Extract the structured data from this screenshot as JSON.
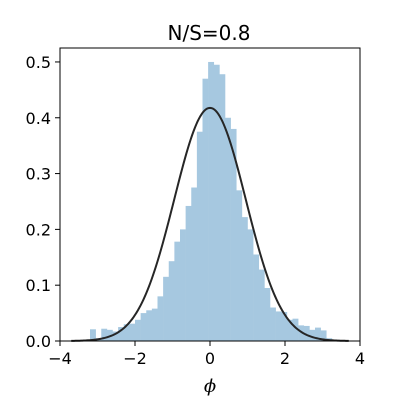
{
  "chart_data": {
    "type": "bar",
    "title": "N/S=0.8",
    "xlabel": "ϕ",
    "ylabel": "",
    "xlim": [
      -4,
      4
    ],
    "ylim": [
      0,
      0.525
    ],
    "xticks": [
      -4,
      -2,
      0,
      2,
      4
    ],
    "xtick_labels": [
      "−4",
      "−2",
      "0",
      "2",
      "4"
    ],
    "yticks": [
      0.0,
      0.1,
      0.2,
      0.3,
      0.4,
      0.5
    ],
    "ytick_labels": [
      "0.0",
      "0.1",
      "0.2",
      "0.3",
      "0.4",
      "0.5"
    ],
    "grid": false,
    "legend": "none",
    "colors": {
      "histogram": "#a6c8e0",
      "curve": "#262626"
    },
    "histogram": {
      "bin_width": 0.15,
      "bins": [
        {
          "x0": -3.2,
          "x1": -3.05,
          "density": 0.021
        },
        {
          "x0": -3.05,
          "x1": -2.9,
          "density": 0.005
        },
        {
          "x0": -2.9,
          "x1": -2.75,
          "density": 0.022
        },
        {
          "x0": -2.75,
          "x1": -2.6,
          "density": 0.02
        },
        {
          "x0": -2.6,
          "x1": -2.45,
          "density": 0.017
        },
        {
          "x0": -2.45,
          "x1": -2.3,
          "density": 0.025
        },
        {
          "x0": -2.3,
          "x1": -2.15,
          "density": 0.03
        },
        {
          "x0": -2.15,
          "x1": -2.0,
          "density": 0.031
        },
        {
          "x0": -2.0,
          "x1": -1.85,
          "density": 0.038
        },
        {
          "x0": -1.85,
          "x1": -1.7,
          "density": 0.05
        },
        {
          "x0": -1.7,
          "x1": -1.55,
          "density": 0.055
        },
        {
          "x0": -1.55,
          "x1": -1.4,
          "density": 0.058
        },
        {
          "x0": -1.4,
          "x1": -1.25,
          "density": 0.08
        },
        {
          "x0": -1.25,
          "x1": -1.1,
          "density": 0.115
        },
        {
          "x0": -1.1,
          "x1": -0.95,
          "density": 0.143
        },
        {
          "x0": -0.95,
          "x1": -0.8,
          "density": 0.178
        },
        {
          "x0": -0.8,
          "x1": -0.65,
          "density": 0.2
        },
        {
          "x0": -0.65,
          "x1": -0.5,
          "density": 0.242
        },
        {
          "x0": -0.5,
          "x1": -0.35,
          "density": 0.275
        },
        {
          "x0": -0.35,
          "x1": -0.2,
          "density": 0.375
        },
        {
          "x0": -0.2,
          "x1": -0.05,
          "density": 0.47
        },
        {
          "x0": -0.05,
          "x1": 0.1,
          "density": 0.5
        },
        {
          "x0": 0.1,
          "x1": 0.25,
          "density": 0.495
        },
        {
          "x0": 0.25,
          "x1": 0.4,
          "density": 0.478
        },
        {
          "x0": 0.4,
          "x1": 0.55,
          "density": 0.4
        },
        {
          "x0": 0.55,
          "x1": 0.7,
          "density": 0.38
        },
        {
          "x0": 0.7,
          "x1": 0.85,
          "density": 0.27
        },
        {
          "x0": 0.85,
          "x1": 1.0,
          "density": 0.222
        },
        {
          "x0": 1.0,
          "x1": 1.15,
          "density": 0.2
        },
        {
          "x0": 1.15,
          "x1": 1.3,
          "density": 0.155
        },
        {
          "x0": 1.3,
          "x1": 1.45,
          "density": 0.128
        },
        {
          "x0": 1.45,
          "x1": 1.6,
          "density": 0.095
        },
        {
          "x0": 1.6,
          "x1": 1.75,
          "density": 0.06
        },
        {
          "x0": 1.75,
          "x1": 1.9,
          "density": 0.053
        },
        {
          "x0": 1.9,
          "x1": 2.05,
          "density": 0.052
        },
        {
          "x0": 2.05,
          "x1": 2.2,
          "density": 0.038
        },
        {
          "x0": 2.2,
          "x1": 2.35,
          "density": 0.04
        },
        {
          "x0": 2.35,
          "x1": 2.5,
          "density": 0.028
        },
        {
          "x0": 2.5,
          "x1": 2.65,
          "density": 0.027
        },
        {
          "x0": 2.65,
          "x1": 2.8,
          "density": 0.02
        },
        {
          "x0": 2.8,
          "x1": 2.95,
          "density": 0.024
        },
        {
          "x0": 2.95,
          "x1": 3.1,
          "density": 0.019
        },
        {
          "x0": 3.1,
          "x1": 3.25,
          "density": 0.005
        }
      ]
    },
    "curve": {
      "type": "line",
      "mean": 0.0,
      "std": 0.955,
      "x_range": [
        -3.7,
        3.7
      ]
    }
  }
}
